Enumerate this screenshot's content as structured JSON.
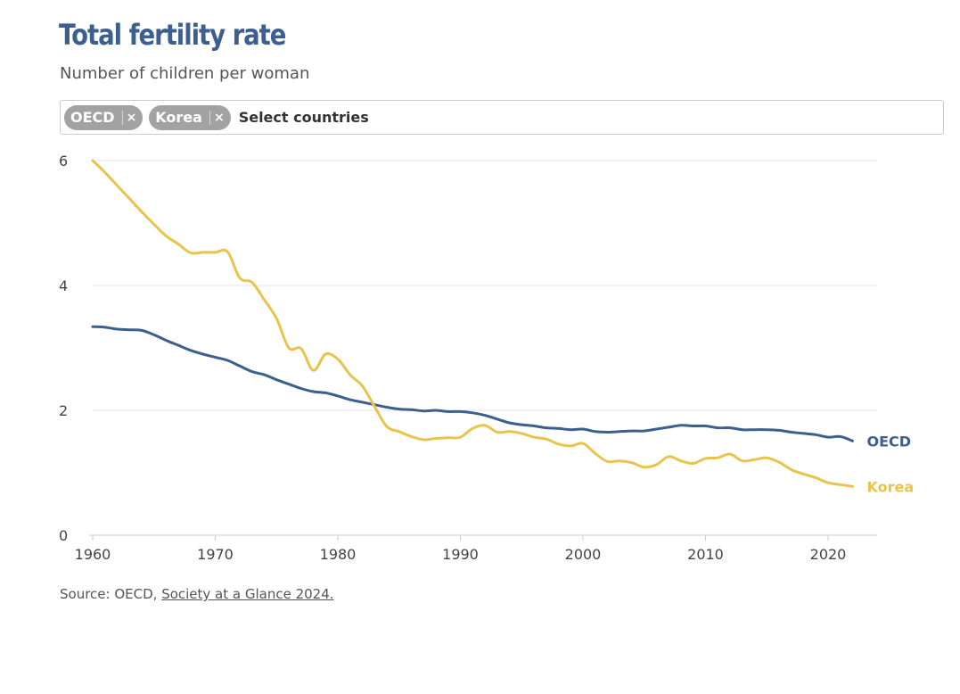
{
  "header": {
    "title": "Total fertility rate",
    "subtitle": "Number of children per woman"
  },
  "country_selector": {
    "chips": [
      {
        "label": "OECD",
        "remove_icon": "×"
      },
      {
        "label": "Korea",
        "remove_icon": "×"
      }
    ],
    "placeholder": "Select countries"
  },
  "footer": {
    "source_prefix": "Source: OECD, ",
    "source_link": "Society at a Glance 2024."
  },
  "colors": {
    "oecd": "#3b5f8f",
    "korea": "#e9c44d",
    "title": "#3c5f8f",
    "grid": "#e6e6e6",
    "axis": "#cccccc",
    "chip": "#a2a2a2"
  },
  "chart_data": {
    "type": "line",
    "title": "Total fertility rate",
    "subtitle": "Number of children per woman",
    "xlabel": "",
    "ylabel": "",
    "xlim": [
      1960,
      2024
    ],
    "ylim": [
      0,
      6
    ],
    "xticks": [
      1960,
      1970,
      1980,
      1990,
      2000,
      2010,
      2020
    ],
    "yticks": [
      0,
      2,
      4,
      6
    ],
    "grid": true,
    "legend": "end-of-line labels",
    "x": [
      1960,
      1961,
      1962,
      1963,
      1964,
      1965,
      1966,
      1967,
      1968,
      1969,
      1970,
      1971,
      1972,
      1973,
      1974,
      1975,
      1976,
      1977,
      1978,
      1979,
      1980,
      1981,
      1982,
      1983,
      1984,
      1985,
      1986,
      1987,
      1988,
      1989,
      1990,
      1991,
      1992,
      1993,
      1994,
      1995,
      1996,
      1997,
      1998,
      1999,
      2000,
      2001,
      2002,
      2003,
      2004,
      2005,
      2006,
      2007,
      2008,
      2009,
      2010,
      2011,
      2012,
      2013,
      2014,
      2015,
      2016,
      2017,
      2018,
      2019,
      2020,
      2021,
      2022
    ],
    "series": [
      {
        "name": "OECD",
        "color": "#3b5f8f",
        "values": [
          3.34,
          3.33,
          3.3,
          3.29,
          3.28,
          3.21,
          3.12,
          3.04,
          2.96,
          2.9,
          2.85,
          2.8,
          2.71,
          2.62,
          2.57,
          2.49,
          2.42,
          2.35,
          2.3,
          2.28,
          2.23,
          2.17,
          2.13,
          2.09,
          2.05,
          2.02,
          2.01,
          1.99,
          2.0,
          1.98,
          1.98,
          1.96,
          1.92,
          1.86,
          1.8,
          1.77,
          1.75,
          1.72,
          1.71,
          1.69,
          1.7,
          1.66,
          1.65,
          1.66,
          1.67,
          1.67,
          1.7,
          1.73,
          1.76,
          1.75,
          1.75,
          1.72,
          1.72,
          1.69,
          1.69,
          1.69,
          1.68,
          1.65,
          1.63,
          1.61,
          1.57,
          1.58,
          1.51
        ]
      },
      {
        "name": "Korea",
        "color": "#e9c44d",
        "values": [
          6.0,
          5.81,
          5.6,
          5.39,
          5.18,
          4.98,
          4.79,
          4.66,
          4.52,
          4.53,
          4.53,
          4.54,
          4.12,
          4.05,
          3.77,
          3.47,
          3.0,
          2.99,
          2.64,
          2.9,
          2.82,
          2.57,
          2.39,
          2.06,
          1.74,
          1.66,
          1.58,
          1.53,
          1.55,
          1.56,
          1.57,
          1.71,
          1.76,
          1.65,
          1.66,
          1.63,
          1.57,
          1.54,
          1.46,
          1.43,
          1.47,
          1.31,
          1.18,
          1.19,
          1.16,
          1.09,
          1.13,
          1.26,
          1.19,
          1.15,
          1.23,
          1.24,
          1.3,
          1.19,
          1.21,
          1.24,
          1.17,
          1.05,
          0.98,
          0.92,
          0.84,
          0.81,
          0.78
        ]
      }
    ]
  }
}
